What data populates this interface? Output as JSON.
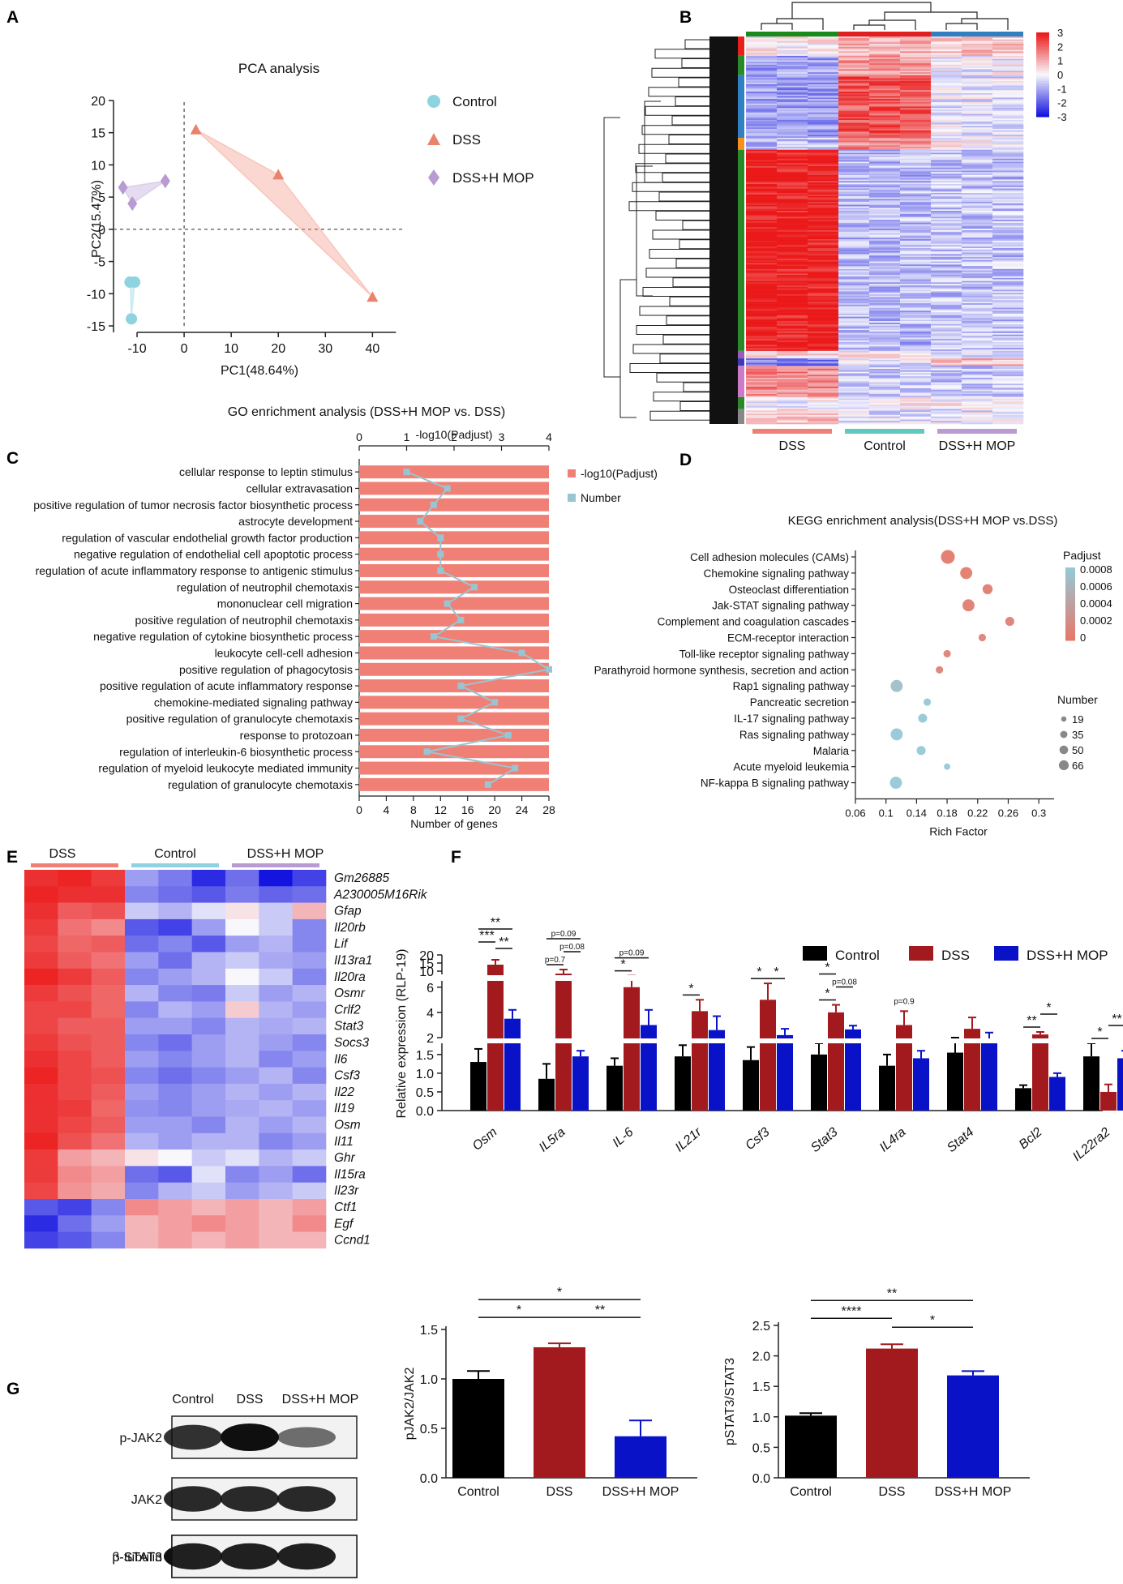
{
  "panel_letters": {
    "a": "A",
    "b": "B",
    "c": "C",
    "d": "D",
    "e": "E",
    "f": "F",
    "g": "G"
  },
  "colors": {
    "control": "#000000",
    "dss": "#a31a1e",
    "dssh": "#0a12c8",
    "bar_c": "#f08076",
    "line_c": "#97c6d2",
    "pca_control": "#8fd3e0",
    "pca_dss": "#e8836e",
    "pca_dssh": "#b79bd2"
  },
  "chart_data": [
    {
      "id": "A",
      "type": "scatter",
      "title": "PCA analysis",
      "xlabel": "PC1(48.64%)",
      "ylabel": "PC2(15.47%)",
      "xlim": [
        -15,
        47
      ],
      "ylim": [
        -16,
        21
      ],
      "xticks": [
        -10,
        0,
        10,
        20,
        30,
        40
      ],
      "yticks": [
        -15,
        -10,
        -5,
        0,
        5,
        10,
        15,
        20
      ],
      "series": [
        {
          "name": "Control",
          "marker": "circle",
          "points": [
            [
              -11.5,
              -8.2
            ],
            [
              -10.5,
              -8.2
            ],
            [
              -11.2,
              -13.9
            ]
          ]
        },
        {
          "name": "DSS",
          "marker": "triangle",
          "points": [
            [
              2.5,
              15.5
            ],
            [
              20.0,
              8.5
            ],
            [
              40.0,
              -10.5
            ]
          ]
        },
        {
          "name": "DSS+H MOP",
          "marker": "diamond",
          "points": [
            [
              -13.0,
              6.5
            ],
            [
              -11.0,
              4.0
            ],
            [
              -4.0,
              7.5
            ]
          ]
        }
      ]
    },
    {
      "id": "B",
      "type": "heatmap",
      "groups": [
        "DSS",
        "Control",
        "DSS+H MOP"
      ],
      "scale_ticks": [
        "3",
        "2",
        "1",
        "0",
        "-1",
        "-2",
        "-3"
      ],
      "cluster_blocks": [
        {
          "color": "#e8201c",
          "share": 0.05
        },
        {
          "color": "#2a8a2a",
          "share": 0.05
        },
        {
          "color": "#2f7fc1",
          "share": 0.16
        },
        {
          "color": "#f5901e",
          "share": 0.03
        },
        {
          "color": "#2a8a2a",
          "share": 0.52
        },
        {
          "color": "#9a5cb8",
          "share": 0.02
        },
        {
          "color": "#3a3abd",
          "share": 0.02
        },
        {
          "color": "#cc7ac8",
          "share": 0.08
        },
        {
          "color": "#2a8a2a",
          "share": 0.03
        },
        {
          "color": "#888888",
          "share": 0.04
        }
      ],
      "pattern": [
        [
          0.1,
          0.7,
          0.5
        ],
        [
          -0.8,
          0.9,
          -0.1
        ],
        [
          -0.9,
          1.6,
          -0.2
        ],
        [
          -0.6,
          1.0,
          0.1
        ],
        [
          2.2,
          -0.6,
          -0.5
        ],
        [
          0.3,
          0.2,
          -0.2
        ],
        [
          -1.2,
          -0.2,
          0.6
        ],
        [
          1.1,
          -0.4,
          -0.5
        ],
        [
          0.0,
          0.1,
          0.0
        ],
        [
          0.5,
          -0.3,
          -0.2
        ]
      ]
    },
    {
      "id": "C",
      "type": "bar",
      "title": "GO enrichment analysis (DSS+H MOP vs. DSS)",
      "xlabel_bottom": "Number of genes",
      "xlabel_top": "-log10(Padjust)",
      "bottom_ticks": [
        0,
        4,
        8,
        12,
        16,
        20,
        24,
        28
      ],
      "top_ticks": [
        0,
        1,
        2,
        3,
        4
      ],
      "legend": [
        "-log10(Padjust)",
        "Number"
      ],
      "categories": [
        "cellular response to leptin stimulus",
        "cellular extravasation",
        "positive regulation of tumor necrosis factor biosynthetic process",
        "astrocyte development",
        "regulation of vascular endothelial growth factor production",
        "negative regulation of endothelial cell apoptotic process",
        "regulation of acute inflammatory response to antigenic stimulus",
        "regulation of neutrophil chemotaxis",
        "mononuclear cell migration",
        "positive regulation of neutrophil chemotaxis",
        "negative regulation of cytokine biosynthetic process",
        "leukocyte cell-cell adhesion",
        "positive regulation of phagocytosis",
        "positive regulation of acute inflammatory response",
        "chemokine-mediated signaling pathway",
        "positive regulation of granulocyte chemotaxis",
        "response to protozoan",
        "regulation of interleukin-6 biosynthetic process",
        "regulation of myeloid leukocyte mediated immunity",
        "regulation of granulocyte chemotaxis"
      ],
      "padjust_log": [
        4,
        4,
        4,
        4,
        4,
        4,
        4,
        4,
        4,
        4,
        4,
        4,
        4,
        4,
        4,
        4,
        4,
        4,
        4,
        4
      ],
      "number": [
        7,
        13,
        11,
        9,
        12,
        12,
        12,
        17,
        13,
        15,
        11,
        24,
        28,
        15,
        20,
        15,
        22,
        10,
        23,
        19
      ]
    },
    {
      "id": "D",
      "type": "scatter",
      "title": "KEGG enrichment analysis(DSS+H MOP vs.DSS)",
      "xlabel": "Rich Factor",
      "xlim": [
        0.06,
        0.32
      ],
      "xticks": [
        0.06,
        0.1,
        0.14,
        0.18,
        0.22,
        0.26,
        0.3
      ],
      "legend_color_title": "Padjust",
      "legend_color_ticks": [
        "0.0008",
        "0.0006",
        "0.0004",
        "0.0002",
        "0"
      ],
      "legend_size_title": "Number",
      "legend_size_values": [
        19,
        35,
        50,
        66
      ],
      "categories": [
        "Cell adhesion molecules (CAMs)",
        "Chemokine signaling pathway",
        "Osteoclast differentiation",
        "Jak-STAT signaling pathway",
        "Complement and coagulation cascades",
        "ECM-receptor interaction",
        "Toll-like receptor signaling pathway",
        "Parathyroid hormone synthesis, secretion and action",
        "Rap1 signaling pathway",
        "Pancreatic secretion",
        "IL-17 signaling pathway",
        "Ras signaling pathway",
        "Malaria",
        "Acute myeloid leukemia",
        "NF-kappa B signaling pathway"
      ],
      "rich_factor": [
        0.181,
        0.205,
        0.233,
        0.208,
        0.262,
        0.226,
        0.18,
        0.17,
        0.114,
        0.154,
        0.148,
        0.114,
        0.146,
        0.18,
        0.113
      ],
      "padjust": [
        2e-05,
        3e-05,
        4e-05,
        5e-05,
        8e-05,
        0.0001,
        0.0001,
        0.0001,
        0.0007,
        0.0008,
        0.0008,
        0.0008,
        0.0008,
        0.0008,
        0.0008
      ],
      "count": [
        66,
        50,
        35,
        50,
        28,
        19,
        19,
        19,
        50,
        19,
        28,
        50,
        28,
        14,
        50
      ]
    },
    {
      "id": "E",
      "type": "heatmap",
      "groups": [
        "DSS",
        "Control",
        "DSS+H MOP"
      ],
      "genes": [
        "Gm26885",
        "A230005M16Rik",
        "Gfap",
        "Il20rb",
        "Lif",
        "Il13ra1",
        "Il20ra",
        "Osmr",
        "Crlf2",
        "Stat3",
        "Socs3",
        "Il6",
        "Csf3",
        "Il22",
        "Il19",
        "Osm",
        "Il11",
        "Ghr",
        "Il15ra",
        "Il23r",
        "Ctf1",
        "Egf",
        "Ccnd1"
      ],
      "values": [
        [
          0.9,
          0.95,
          0.85,
          -0.4,
          -0.55,
          -0.9,
          -0.6,
          -1.0,
          -0.8
        ],
        [
          0.95,
          0.9,
          0.9,
          -0.5,
          -0.6,
          -0.7,
          -0.55,
          -0.65,
          -0.6
        ],
        [
          0.9,
          0.7,
          0.75,
          -0.2,
          -0.3,
          -0.1,
          0.1,
          -0.2,
          0.3
        ],
        [
          0.85,
          0.6,
          0.5,
          -0.7,
          -0.8,
          -0.4,
          0.0,
          -0.2,
          -0.5
        ],
        [
          0.8,
          0.65,
          0.7,
          -0.6,
          -0.5,
          -0.7,
          -0.4,
          -0.3,
          -0.5
        ],
        [
          0.85,
          0.7,
          0.6,
          -0.4,
          -0.6,
          -0.3,
          -0.2,
          -0.35,
          -0.4
        ],
        [
          0.95,
          0.85,
          0.7,
          -0.5,
          -0.4,
          -0.3,
          0.0,
          -0.2,
          -0.5
        ],
        [
          0.85,
          0.75,
          0.65,
          -0.3,
          -0.5,
          -0.55,
          -0.2,
          -0.4,
          -0.3
        ],
        [
          0.8,
          0.8,
          0.65,
          -0.5,
          -0.3,
          -0.4,
          0.2,
          -0.3,
          -0.4
        ],
        [
          0.8,
          0.7,
          0.7,
          -0.4,
          -0.4,
          -0.5,
          -0.3,
          -0.35,
          -0.3
        ],
        [
          0.85,
          0.75,
          0.7,
          -0.5,
          -0.6,
          -0.4,
          -0.3,
          -0.4,
          -0.5
        ],
        [
          0.9,
          0.8,
          0.7,
          -0.4,
          -0.5,
          -0.4,
          -0.3,
          -0.5,
          -0.4
        ],
        [
          0.95,
          0.8,
          0.75,
          -0.5,
          -0.6,
          -0.5,
          -0.4,
          -0.3,
          -0.5
        ],
        [
          0.9,
          0.8,
          0.7,
          -0.4,
          -0.5,
          -0.4,
          -0.3,
          -0.4,
          -0.3
        ],
        [
          0.9,
          0.85,
          0.65,
          -0.45,
          -0.5,
          -0.4,
          -0.35,
          -0.3,
          -0.4
        ],
        [
          0.9,
          0.8,
          0.7,
          -0.4,
          -0.4,
          -0.5,
          -0.3,
          -0.4,
          -0.3
        ],
        [
          0.95,
          0.75,
          0.6,
          -0.3,
          -0.4,
          -0.3,
          -0.3,
          -0.5,
          -0.4
        ],
        [
          0.85,
          0.4,
          0.3,
          0.1,
          0.0,
          -0.2,
          -0.1,
          -0.3,
          -0.2
        ],
        [
          0.85,
          0.5,
          0.4,
          -0.6,
          -0.7,
          -0.1,
          -0.5,
          -0.4,
          -0.6
        ],
        [
          0.8,
          0.45,
          0.35,
          -0.5,
          -0.3,
          -0.2,
          -0.4,
          -0.3,
          -0.2
        ],
        [
          -0.7,
          -0.8,
          -0.5,
          0.5,
          0.4,
          0.3,
          0.4,
          0.3,
          0.4
        ],
        [
          -0.9,
          -0.6,
          -0.4,
          0.3,
          0.4,
          0.5,
          0.4,
          0.3,
          0.5
        ],
        [
          -0.8,
          -0.7,
          -0.5,
          0.3,
          0.4,
          0.3,
          0.4,
          0.3,
          0.3
        ]
      ]
    },
    {
      "id": "F",
      "type": "bar",
      "ylabel": "Relative expression (RLP-19)",
      "categories": [
        "Osm",
        "IL5ra",
        "IL-6",
        "IL21r",
        "Csf3",
        "Stat3",
        "IL4ra",
        "Stat4",
        "Bcl2",
        "IL22ra2"
      ],
      "series": [
        {
          "name": "Control",
          "values": [
            1.3,
            0.85,
            1.2,
            1.45,
            1.35,
            1.5,
            1.2,
            1.55,
            0.6,
            1.45
          ]
        },
        {
          "name": "DSS",
          "values": [
            14.0,
            8.5,
            6.0,
            4.1,
            5.0,
            4.0,
            3.0,
            2.7,
            2.25,
            0.5
          ]
        },
        {
          "name": "DSS+H MOP",
          "values": [
            3.5,
            1.45,
            3.0,
            2.6,
            2.2,
            2.65,
            1.4,
            1.8,
            0.9,
            1.4
          ]
        }
      ],
      "errors": [
        [
          0.35,
          0.4,
          0.2,
          0.3,
          0.35,
          0.3,
          0.3,
          0.45,
          0.08,
          0.35
        ],
        [
          3.0,
          2.5,
          1.2,
          0.9,
          1.3,
          0.6,
          1.1,
          0.9,
          0.2,
          0.2
        ],
        [
          0.7,
          0.15,
          1.2,
          1.1,
          0.5,
          0.3,
          0.2,
          0.6,
          0.1,
          0.2
        ]
      ],
      "yticks": [
        "0.0",
        "0.5",
        "1.0",
        "1.5",
        "2",
        "4",
        "6",
        "10",
        "15",
        "20"
      ],
      "significance": [
        {
          "cat": 0,
          "from": 0,
          "to": 2,
          "label": "**",
          "level": 2
        },
        {
          "cat": 0,
          "from": 0,
          "to": 1,
          "label": "***",
          "level": 1
        },
        {
          "cat": 0,
          "from": 1,
          "to": 2,
          "label": "**",
          "level": 0.5
        },
        {
          "cat": 1,
          "from": 0,
          "to": 2,
          "label": "p=0.09",
          "level": 2
        },
        {
          "cat": 1,
          "from": 1,
          "to": 2,
          "label": "p=0.08",
          "level": 1
        },
        {
          "cat": 1,
          "from": 0,
          "to": 1,
          "label": "p=0.7",
          "level": 0
        },
        {
          "cat": 2,
          "from": 0,
          "to": 2,
          "label": "p=0.09",
          "level": 1
        },
        {
          "cat": 2,
          "from": 0,
          "to": 1,
          "label": "*",
          "level": 0
        },
        {
          "cat": 3,
          "from": 0,
          "to": 1,
          "label": "*",
          "level": 0
        },
        {
          "cat": 4,
          "from": 0,
          "to": 1,
          "label": "*",
          "level": 0
        },
        {
          "cat": 4,
          "from": 1,
          "to": 2,
          "label": "*",
          "level": 0
        },
        {
          "cat": 5,
          "from": 0,
          "to": 1,
          "label": "*",
          "level": 2
        },
        {
          "cat": 5,
          "from": 0,
          "to": 1,
          "label": "*",
          "level": 0
        },
        {
          "cat": 5,
          "from": 1,
          "to": 2,
          "label": "p=0.08",
          "level": 1
        },
        {
          "cat": 6,
          "from": 1,
          "to": 1,
          "label": "p=0.9",
          "level": 0
        },
        {
          "cat": 8,
          "from": 0,
          "to": 1,
          "label": "**",
          "level": 0
        },
        {
          "cat": 8,
          "from": 1,
          "to": 2,
          "label": "*",
          "level": 1
        },
        {
          "cat": 9,
          "from": 0,
          "to": 1,
          "label": "*",
          "level": 0
        },
        {
          "cat": 9,
          "from": 1,
          "to": 2,
          "label": "**",
          "level": 1
        }
      ]
    },
    {
      "id": "G1",
      "type": "bar",
      "ylabel": "pJAK2/JAK2",
      "categories": [
        "Control",
        "DSS",
        "DSS+H MOP"
      ],
      "values": [
        1.0,
        1.32,
        0.42
      ],
      "errors": [
        0.08,
        0.04,
        0.16
      ],
      "ylim": [
        0,
        1.5
      ],
      "yticks": [
        "0.0",
        "0.5",
        "1.0",
        "1.5"
      ],
      "significance": [
        {
          "from": 0,
          "to": 2,
          "label": "*",
          "level": 2
        },
        {
          "from": 0,
          "to": 1,
          "label": "*",
          "level": 1
        },
        {
          "from": 1,
          "to": 2,
          "label": "**",
          "level": 1
        }
      ]
    },
    {
      "id": "G2",
      "type": "bar",
      "ylabel": "pSTAT3/STAT3",
      "categories": [
        "Control",
        "DSS",
        "DSS+H MOP"
      ],
      "values": [
        1.02,
        2.12,
        1.68
      ],
      "errors": [
        0.04,
        0.07,
        0.07
      ],
      "ylim": [
        0,
        2.5
      ],
      "yticks": [
        "0.0",
        "0.5",
        "1.0",
        "1.5",
        "2.0",
        "2.5"
      ],
      "significance": [
        {
          "from": 0,
          "to": 2,
          "label": "**",
          "level": 2
        },
        {
          "from": 0,
          "to": 1,
          "label": "****",
          "level": 1
        },
        {
          "from": 1,
          "to": 2,
          "label": "*",
          "level": 0.5
        }
      ]
    }
  ],
  "blots": {
    "lanes": [
      "Control",
      "DSS",
      "DSS+H MOP"
    ],
    "rows": [
      {
        "label": "p-JAK2",
        "intensity": [
          0.8,
          1.0,
          0.45
        ]
      },
      {
        "label": "JAK2",
        "intensity": [
          0.85,
          0.85,
          0.85
        ]
      },
      {
        "label": "p-STAT3",
        "intensity": [
          0.35,
          0.8,
          0.6
        ]
      },
      {
        "label": "STAT3",
        "intensity": [
          0.85,
          0.85,
          0.8
        ]
      },
      {
        "label": "β-tubulin",
        "intensity": [
          0.9,
          0.9,
          0.9
        ]
      }
    ]
  }
}
